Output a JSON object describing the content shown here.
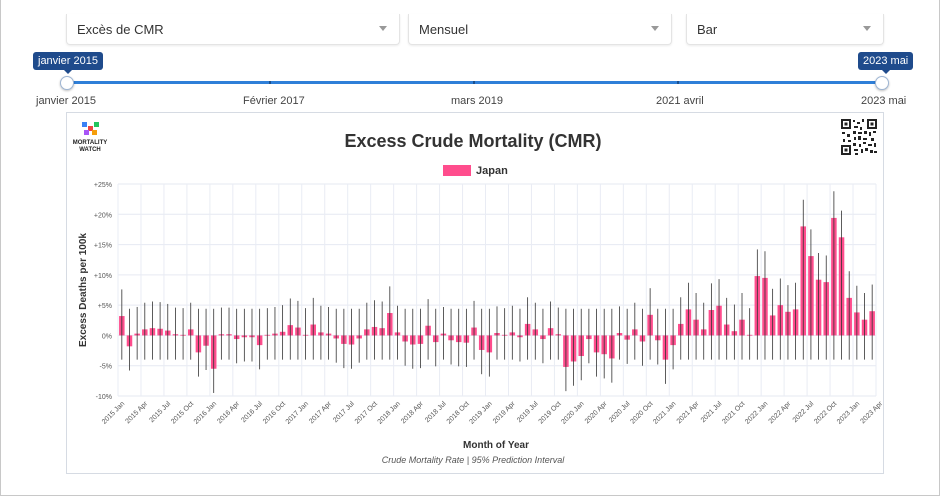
{
  "controls": {
    "metric_label": "Excès de CMR",
    "period_label": "Mensuel",
    "chart_type_label": "Bar"
  },
  "slider": {
    "start_bubble": "janvier 2015",
    "end_bubble": "2023 mai",
    "labels": [
      "janvier 2015",
      "Février 2017",
      "mars 2019",
      "2021 avril",
      "2023 mai"
    ],
    "track_color": "#2f7fd8"
  },
  "logo": {
    "line1": "MORTALITY",
    "line2": "WATCH"
  },
  "chart_data": {
    "type": "bar",
    "title": "Excess Crude Mortality (CMR)",
    "xlabel": "Month of Year",
    "ylabel": "Excess Deaths per 100k",
    "caption": "Crude Mortality Rate | 95% Prediction Interval",
    "ylim": [
      -10,
      25
    ],
    "yticks": [
      "-10%",
      "-5%",
      "0%",
      "+5%",
      "+10%",
      "+15%",
      "+20%",
      "+25%"
    ],
    "ytick_values": [
      -10,
      -5,
      0,
      5,
      10,
      15,
      20,
      25
    ],
    "grid": true,
    "legend_position": "top-center",
    "series": [
      {
        "name": "Japan",
        "color": "#ff4d8d",
        "values": [
          3.2,
          -1.8,
          0.3,
          1.0,
          1.2,
          1.1,
          0.8,
          0.2,
          0.1,
          1.0,
          -2.8,
          -1.7,
          -5.5,
          0.2,
          0.2,
          -0.6,
          -0.3,
          -0.3,
          -1.6,
          0.1,
          0.3,
          0.6,
          1.7,
          1.3,
          0.1,
          1.8,
          0.5,
          0.3,
          -0.5,
          -1.4,
          -1.5,
          -0.5,
          1.0,
          1.4,
          1.2,
          3.7,
          0.5,
          -1.0,
          -1.5,
          -1.4,
          1.6,
          -1.1,
          0.3,
          -0.8,
          -1.1,
          -1.2,
          1.3,
          -2.4,
          -2.8,
          0.4,
          0.1,
          0.5,
          -0.3,
          1.9,
          1.0,
          -0.6,
          1.2,
          0.2,
          -5.2,
          -4.3,
          -3.4,
          -0.6,
          -2.8,
          -3.1,
          -3.8,
          0.4,
          -0.7,
          1.0,
          -1.0,
          3.4,
          -0.8,
          -4.0,
          -1.6,
          1.9,
          4.3,
          2.6,
          1.0,
          4.2,
          4.9,
          1.8,
          0.7,
          2.6,
          0.1,
          9.8,
          9.5,
          3.3,
          5.0,
          3.9,
          4.3,
          18.0,
          13.1,
          9.2,
          8.8,
          19.4,
          16.2,
          6.2,
          3.8,
          2.6,
          4.0
        ]
      }
    ],
    "x_tick_labels": [
      "2015 Jan",
      "2015 Apr",
      "2015 Jul",
      "2015 Oct",
      "2016 Jan",
      "2016 Apr",
      "2016 Jul",
      "2016 Oct",
      "2017 Jan",
      "2017 Apr",
      "2017 Jul",
      "2017 Oct",
      "2018 Jan",
      "2018 Apr",
      "2018 Jul",
      "2018 Oct",
      "2019 Jan",
      "2019 Apr",
      "2019 Jul",
      "2019 Oct",
      "2020 Jan",
      "2020 Apr",
      "2020 Jul",
      "2020 Oct",
      "2021 Jan",
      "2021 Apr",
      "2021 Jul",
      "2021 Oct",
      "2022 Jan",
      "2022 Apr",
      "2022 Jul",
      "2022 Oct",
      "2023 Jan",
      "2023 Apr"
    ]
  }
}
